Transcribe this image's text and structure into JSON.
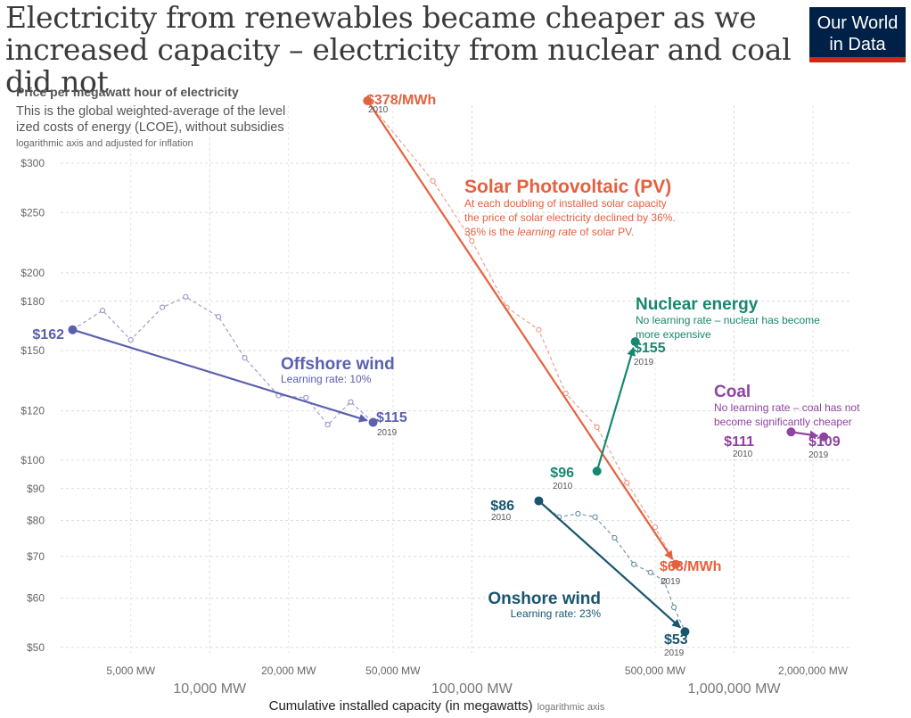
{
  "title": "Electricity from renewables became cheaper as we increased capacity – electricity from nuclear and coal did not",
  "logo": {
    "line1": "Our World",
    "line2": "in Data"
  },
  "chart_data": {
    "type": "scatter",
    "title": "Price per megawatt hour of electricity",
    "subtitle": "This is the global weighted-average of the levelized costs of energy (LCOE), without subsidies",
    "subtitle_note": "logarithmic axis and adjusted for inflation",
    "xlabel": "Cumulative installed capacity (in megawatts)",
    "xlabel_note": "logarithmic axis",
    "xscale": "log",
    "yscale": "log",
    "xlim": [
      2700,
      2800000
    ],
    "ylim": [
      49,
      378
    ],
    "x_ticks_major": [
      {
        "value": 10000,
        "label": "10,000 MW"
      },
      {
        "value": 100000,
        "label": "100,000 MW"
      },
      {
        "value": 1000000,
        "label": "1,000,000 MW"
      }
    ],
    "x_ticks_minor": [
      {
        "value": 5000,
        "label": "5,000 MW"
      },
      {
        "value": 20000,
        "label": "20,000 MW"
      },
      {
        "value": 50000,
        "label": "50,000 MW"
      },
      {
        "value": 500000,
        "label": "500,000 MW"
      },
      {
        "value": 2000000,
        "label": "2,000,000 MW"
      }
    ],
    "y_ticks": [
      {
        "value": 50,
        "label": "$50"
      },
      {
        "value": 60,
        "label": "$60"
      },
      {
        "value": 70,
        "label": "$70"
      },
      {
        "value": 80,
        "label": "$80"
      },
      {
        "value": 90,
        "label": "$90"
      },
      {
        "value": 100,
        "label": "$100"
      },
      {
        "value": 120,
        "label": "$120"
      },
      {
        "value": 150,
        "label": "$150"
      },
      {
        "value": 180,
        "label": "$180"
      },
      {
        "value": 200,
        "label": "$200"
      },
      {
        "value": 250,
        "label": "$250"
      },
      {
        "value": 300,
        "label": "$300"
      }
    ],
    "grid": true,
    "series": [
      {
        "name": "Solar Photovoltaic (PV)",
        "color": "#e5603f",
        "annotation": [
          "At each doubling of installed solar capacity",
          "the price of solar electricity declined by 36%."
        ],
        "annotation_last_pre": "36% is the ",
        "annotation_last_em": "learning rate",
        "annotation_last_post": " of solar PV.",
        "start": {
          "x": 40000,
          "y": 378,
          "label": "$378/MWh",
          "year": "2010"
        },
        "end": {
          "x": 600000,
          "y": 68,
          "label": "$68/MWh",
          "year": "2019"
        },
        "yearly": [
          [
            40000,
            378
          ],
          [
            71000,
            281
          ],
          [
            100000,
            225
          ],
          [
            136000,
            176
          ],
          [
            180000,
            162
          ],
          [
            228000,
            128
          ],
          [
            300000,
            113
          ],
          [
            390000,
            92
          ],
          [
            500000,
            78
          ],
          [
            600000,
            68
          ]
        ]
      },
      {
        "name": "Offshore wind",
        "color": "#5b5faf",
        "annotation": [
          "Learning rate: 10%"
        ],
        "start": {
          "x": 3000,
          "y": 162,
          "label": "$162",
          "year": ""
        },
        "end": {
          "x": 42000,
          "y": 115,
          "label": "$115",
          "year": "2019"
        },
        "yearly": [
          [
            3000,
            162
          ],
          [
            3900,
            174
          ],
          [
            5000,
            156
          ],
          [
            6600,
            176
          ],
          [
            8100,
            183
          ],
          [
            10800,
            170
          ],
          [
            13600,
            146
          ],
          [
            18300,
            127
          ],
          [
            23300,
            126
          ],
          [
            28200,
            114
          ],
          [
            34500,
            124
          ],
          [
            42000,
            115
          ]
        ]
      },
      {
        "name": "Nuclear energy",
        "color": "#18876f",
        "annotation": [
          "No learning rate – nuclear has become",
          "more expensive"
        ],
        "start": {
          "x": 300000,
          "y": 96,
          "label": "$96",
          "year": "2010"
        },
        "end": {
          "x": 420000,
          "y": 155,
          "label": "$155",
          "year": "2019"
        }
      },
      {
        "name": "Coal",
        "color": "#8e44a0",
        "annotation": [
          "No learning rate – coal has not",
          "become significantly cheaper"
        ],
        "start": {
          "x": 1650000,
          "y": 111,
          "label": "$111",
          "year": "2010"
        },
        "end": {
          "x": 2200000,
          "y": 109,
          "label": "$109",
          "year": "2019"
        }
      },
      {
        "name": "Onshore wind",
        "color": "#1a5570",
        "annotation": [
          "Learning rate: 23%"
        ],
        "start": {
          "x": 180000,
          "y": 86,
          "label": "$86",
          "year": "2010"
        },
        "end": {
          "x": 650000,
          "y": 53,
          "label": "$53",
          "year": "2019"
        },
        "yearly": [
          [
            180000,
            86
          ],
          [
            215000,
            81
          ],
          [
            254000,
            82
          ],
          [
            295000,
            81
          ],
          [
            350000,
            75
          ],
          [
            415000,
            68
          ],
          [
            480000,
            66
          ],
          [
            540000,
            64
          ],
          [
            590000,
            58
          ],
          [
            650000,
            53
          ]
        ]
      }
    ]
  }
}
